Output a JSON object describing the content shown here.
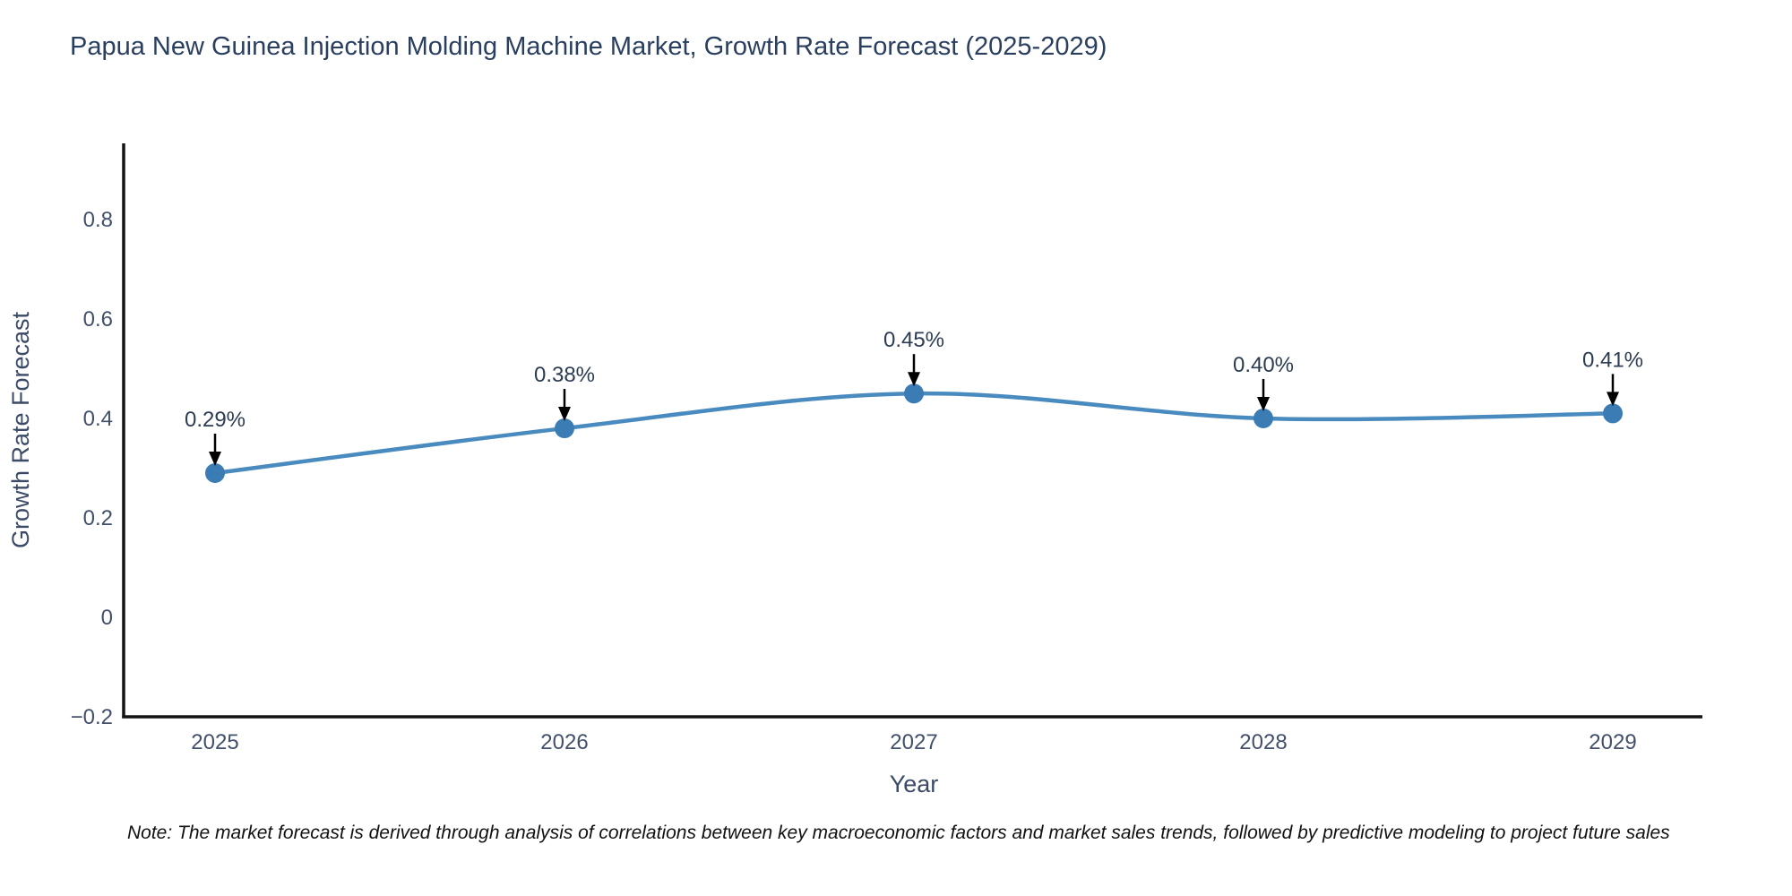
{
  "chart_data": {
    "type": "line",
    "title": "Papua New Guinea Injection Molding Machine Market, Growth Rate Forecast (2025-2029)",
    "x": [
      "2025",
      "2026",
      "2027",
      "2028",
      "2029"
    ],
    "series": [
      {
        "name": "Growth Rate Forecast",
        "values": [
          0.29,
          0.38,
          0.45,
          0.4,
          0.41
        ],
        "point_labels": [
          "0.29%",
          "0.38%",
          "0.45%",
          "0.40%",
          "0.41%"
        ]
      }
    ],
    "xlabel": "Year",
    "ylabel": "Growth Rate Forecast",
    "ylim": [
      -0.2,
      0.953
    ],
    "yticks": [
      {
        "value": -0.2,
        "label": "−0.2"
      },
      {
        "value": 0,
        "label": "0"
      },
      {
        "value": 0.2,
        "label": "0.2"
      },
      {
        "value": 0.4,
        "label": "0.4"
      },
      {
        "value": 0.6,
        "label": "0.6"
      },
      {
        "value": 0.8,
        "label": "0.8"
      }
    ],
    "grid": false,
    "legend_position": "none",
    "line_shape": "spline",
    "colors": {
      "line": "#4a8bbf",
      "marker": "#3c7cb4",
      "axis": "#141414",
      "title_text": "#2a3f5f",
      "tick_text": "#42506b",
      "axis_title_text": "#3b4a66",
      "annotation_text": "#2c3c52",
      "annotation_arrow": "#000000"
    }
  },
  "note": "Note: The market forecast is derived through analysis of correlations between key macroeconomic factors and market sales trends, followed by predictive modeling to project future sales"
}
